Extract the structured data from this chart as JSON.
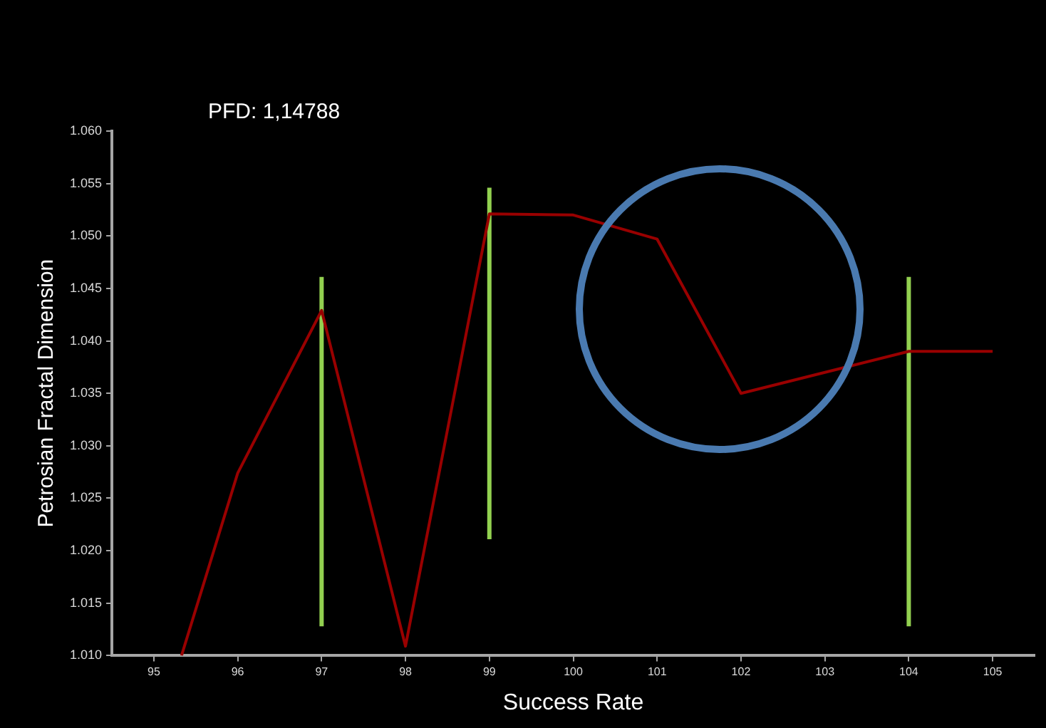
{
  "chart_data": {
    "type": "line",
    "xlabel": "Success Rate",
    "ylabel": "Petrosian Fractal Dimension",
    "annotations": [
      "PFD: 1,14788"
    ],
    "xlim": [
      94.5,
      105.5
    ],
    "xticks": [
      95,
      96,
      97,
      98,
      99,
      100,
      101,
      102,
      103,
      104,
      105
    ],
    "ylim": [
      1.01,
      1.06
    ],
    "yticks": [
      {
        "value": 1.01,
        "label": "1.010"
      },
      {
        "value": 1.015,
        "label": "1.015"
      },
      {
        "value": 1.02,
        "label": "1.020"
      },
      {
        "value": 1.025,
        "label": "1.025"
      },
      {
        "value": 1.03,
        "label": "1.030"
      },
      {
        "value": 1.035,
        "label": "1.035"
      },
      {
        "value": 1.04,
        "label": "1.040"
      },
      {
        "value": 1.045,
        "label": "1.045"
      },
      {
        "value": 1.05,
        "label": "1.050"
      },
      {
        "value": 1.055,
        "label": "1.055"
      },
      {
        "value": 1.06,
        "label": "1.060"
      }
    ],
    "grid": false,
    "legend": false,
    "marker": "none",
    "line_style": "solid",
    "series": [
      {
        "color": "#990000",
        "x": [
          95.33,
          96,
          97,
          98,
          99,
          100,
          101,
          102,
          103,
          104,
          105
        ],
        "values": [
          1.01,
          1.0274,
          1.0429,
          1.0109,
          1.0521,
          1.052,
          1.0497,
          1.035,
          1.037,
          1.039,
          1.039
        ]
      },
      {
        "color": "#92d050",
        "x": [
          97,
          97
        ],
        "values": [
          1.0128,
          1.0461
        ]
      },
      {
        "color": "#92d050",
        "x": [
          99,
          99
        ],
        "values": [
          1.0211,
          1.0546
        ]
      },
      {
        "color": "#92d050",
        "x": [
          104,
          104
        ],
        "values": [
          1.0128,
          1.0461
        ]
      }
    ]
  }
}
